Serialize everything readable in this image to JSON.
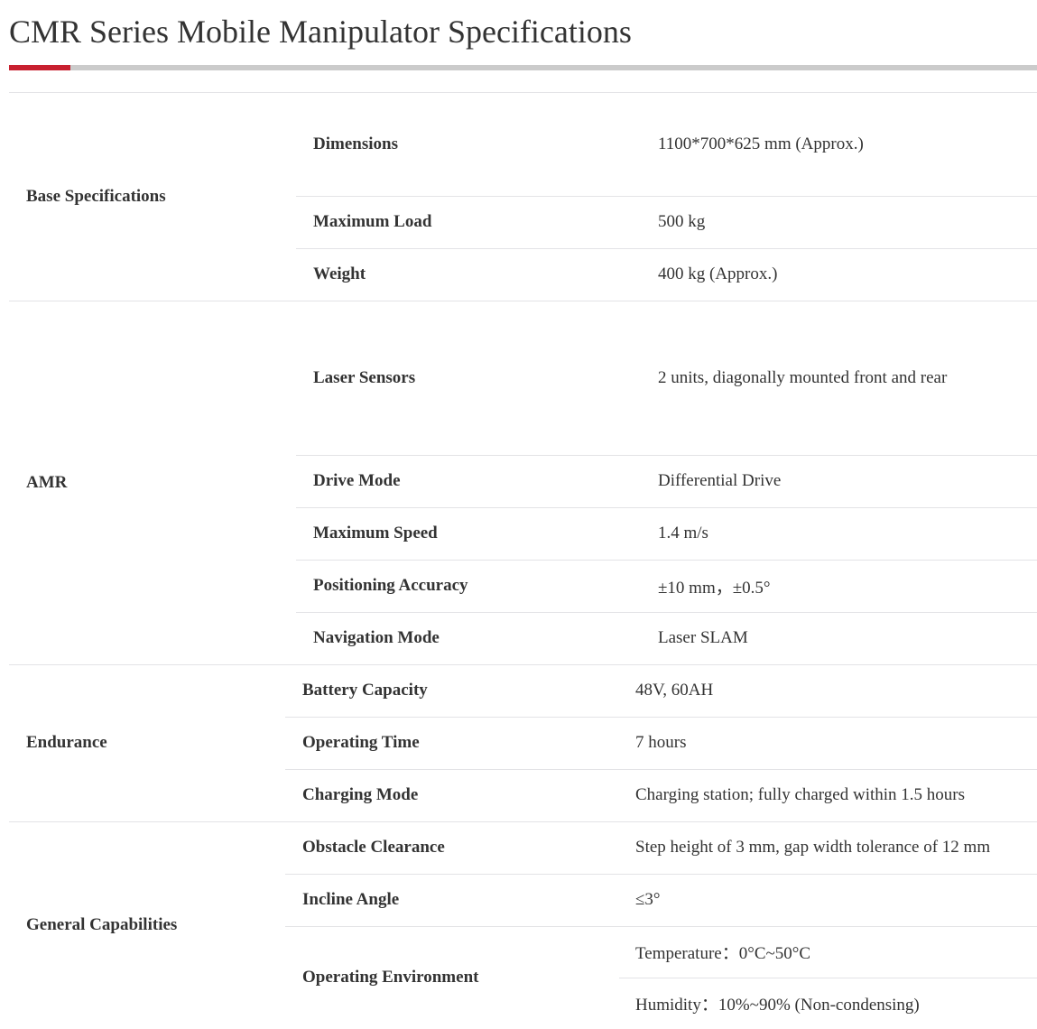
{
  "title": "CMR Series Mobile Manipulator Specifications",
  "accent_color": "#c8202f",
  "groups": [
    {
      "label": "Base Specifications",
      "rows": [
        {
          "key": "Dimensions",
          "value": "1100*700*625 mm (Approx.)"
        },
        {
          "key": "Maximum Load",
          "value": "500 kg"
        },
        {
          "key": "Weight",
          "value": "400 kg (Approx.)"
        }
      ]
    },
    {
      "label": "AMR",
      "rows": [
        {
          "key": "Laser Sensors",
          "value": "2 units, diagonally mounted front and rear"
        },
        {
          "key": "Drive Mode",
          "value": "Differential Drive"
        },
        {
          "key": "Maximum Speed",
          "value": "1.4 m/s"
        },
        {
          "key": "Positioning Accuracy",
          "value": "±10 mm，±0.5°"
        },
        {
          "key": "Navigation Mode",
          "value": "Laser SLAM"
        }
      ]
    },
    {
      "label": "Endurance",
      "rows": [
        {
          "key": "Battery Capacity",
          "value": "48V, 60AH"
        },
        {
          "key": "Operating Time",
          "value": "7 hours"
        },
        {
          "key": "Charging Mode",
          "value": "Charging station; fully charged within 1.5 hours"
        }
      ]
    },
    {
      "label": "General Capabilities",
      "rows": [
        {
          "key": "Obstacle Clearance",
          "value": "Step height of 3 mm, gap width tolerance of 12 mm"
        },
        {
          "key": "Incline Angle",
          "value": "≤3°"
        },
        {
          "key": "Operating Environment",
          "values": [
            "Temperature：0°C~50°C",
            "Humidity：10%~90% (Non-condensing)"
          ]
        }
      ]
    }
  ]
}
